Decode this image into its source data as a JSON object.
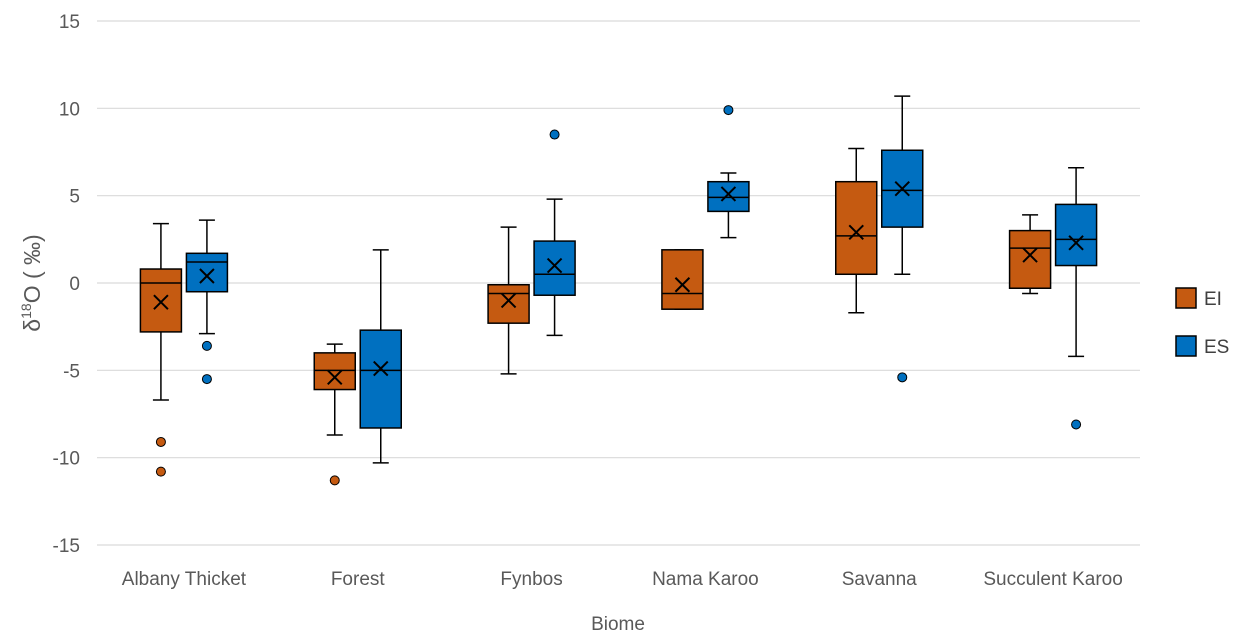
{
  "chart_data": {
    "type": "box",
    "title": "",
    "xlabel": "Biome",
    "ylabel": "δ18O (‰)",
    "ylabel_parts": {
      "base": "δ",
      "sup": "18",
      "rest": "O ( ‰)"
    },
    "ylim": [
      -15,
      15
    ],
    "yticks": [
      15,
      10,
      5,
      0,
      -5,
      -10,
      -15
    ],
    "ytick_labels": [
      "15",
      "10",
      "5",
      "0",
      "-5",
      "-10",
      "-15"
    ],
    "grid": true,
    "legend_position": "right",
    "categories": [
      "Albany Thicket",
      "Forest",
      "Fynbos",
      "Nama Karoo",
      "Savanna",
      "Succulent Karoo"
    ],
    "series": [
      {
        "name": "EI",
        "color": "#c55a11",
        "boxes": [
          {
            "whisker_low": -6.7,
            "q1": -2.8,
            "median": 0.0,
            "mean": -1.1,
            "q3": 0.8,
            "whisker_high": 3.4,
            "outliers": [
              -9.1,
              -10.8
            ]
          },
          {
            "whisker_low": -8.7,
            "q1": -6.1,
            "median": -5.0,
            "mean": -5.4,
            "q3": -4.0,
            "whisker_high": -3.5,
            "outliers": [
              -11.3
            ]
          },
          {
            "whisker_low": -5.2,
            "q1": -2.3,
            "median": -0.6,
            "mean": -1.0,
            "q3": -0.1,
            "whisker_high": 3.2,
            "outliers": []
          },
          {
            "whisker_low": -1.5,
            "q1": -1.5,
            "median": -0.6,
            "mean": -0.1,
            "q3": 1.9,
            "whisker_high": 1.9,
            "outliers": []
          },
          {
            "whisker_low": -1.7,
            "q1": 0.5,
            "median": 2.7,
            "mean": 2.9,
            "q3": 5.8,
            "whisker_high": 7.7,
            "outliers": []
          },
          {
            "whisker_low": -0.6,
            "q1": -0.3,
            "median": 2.0,
            "mean": 1.6,
            "q3": 3.0,
            "whisker_high": 3.9,
            "outliers": []
          }
        ]
      },
      {
        "name": "ES",
        "color": "#0070c0",
        "boxes": [
          {
            "whisker_low": -2.9,
            "q1": -0.5,
            "median": 1.2,
            "mean": 0.4,
            "q3": 1.7,
            "whisker_high": 3.6,
            "outliers": [
              -3.6,
              -5.5
            ]
          },
          {
            "whisker_low": -10.3,
            "q1": -8.3,
            "median": -5.0,
            "mean": -4.9,
            "q3": -2.7,
            "whisker_high": 1.9,
            "outliers": []
          },
          {
            "whisker_low": -3.0,
            "q1": -0.7,
            "median": 0.5,
            "mean": 1.0,
            "q3": 2.4,
            "whisker_high": 4.8,
            "outliers": [
              8.5
            ]
          },
          {
            "whisker_low": 2.6,
            "q1": 4.1,
            "median": 4.9,
            "mean": 5.1,
            "q3": 5.8,
            "whisker_high": 6.3,
            "outliers": [
              9.9
            ]
          },
          {
            "whisker_low": 0.5,
            "q1": 3.2,
            "median": 5.3,
            "mean": 5.4,
            "q3": 7.6,
            "whisker_high": 10.7,
            "outliers": [
              -5.4
            ]
          },
          {
            "whisker_low": -4.2,
            "q1": 1.0,
            "median": 2.5,
            "mean": 2.3,
            "q3": 4.5,
            "whisker_high": 6.6,
            "outliers": [
              -8.1
            ]
          }
        ]
      }
    ]
  }
}
